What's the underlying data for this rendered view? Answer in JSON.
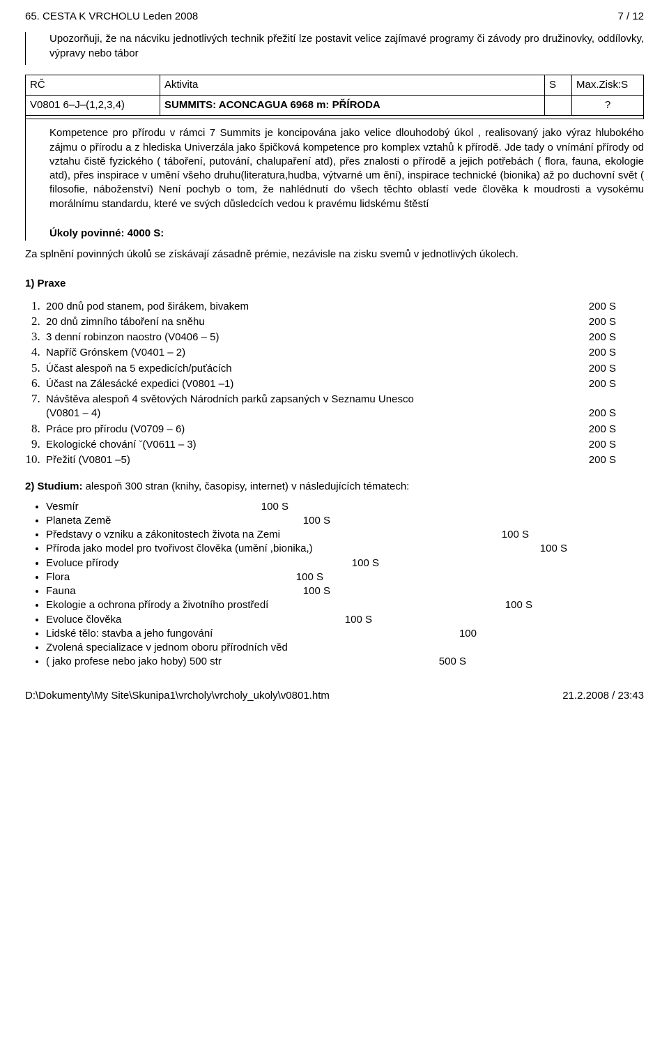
{
  "header": {
    "left": "65. CESTA K VRCHOLU Leden 2008",
    "right": "7 / 12"
  },
  "note": "Upozorňuji, že na nácviku jednotlivých technik přežití lze postavit velice zajímavé programy či závody pro družinovky, oddílovky, výpravy nebo tábor",
  "rc_table": {
    "head": {
      "rc": "RČ",
      "act": "Aktivita",
      "s": "S",
      "zisk": "Max.Zisk:S"
    },
    "row": {
      "rc": "V0801 6–J–(1,2,3,4)",
      "act": "SUMMITS: ACONCAGUA 6968 m: PŘÍRODA",
      "s": "",
      "zisk": "?"
    }
  },
  "kompetence": "Kompetence pro přírodu v rámci 7 Summits je koncipována jako velice dlouhodobý úkol , realisovaný jako výraz hlubokého zájmu o přírodu a z hlediska Univerzála jako špičková kompetence pro komplex vztahů k přírodě. Jde tady o vnímání přírody od vztahu čistě fyzického ( táboření, putování, chalupaření atd), přes znalosti o přírodě a jejich potřebách ( flora, fauna, ekologie atd), přes inspirace v umění všeho druhu(literatura,hudba, výtvarné um ění), inspirace technické (bionika) až po duchovní svět ( filosofie, náboženství) Není pochyb o tom, že nahlédnutí do všech těchto oblastí vede člověka k moudrosti a vysokému morálnímu standardu, které ve svých důsledcích vedou k pravému lidskému štěstí",
  "ukoly_heading": "Úkoly povinné: 4000 S:",
  "premie": "Za splnění povinných úkolů se získávají zásadně prémie, nezávisle na zisku svemů v jednotlivých úkolech.",
  "praxe_heading": "1) Praxe",
  "praxe": [
    {
      "text": "200 dnů pod stanem, pod širákem, bivakem",
      "pts": "200 S"
    },
    {
      "text": " 20 dnů zimního táboření na sněhu",
      "pts": "200 S"
    },
    {
      "text": "3 denní robinzon naostro (V0406 – 5)",
      "pts": "200 S"
    },
    {
      "text": "Napříč Grónskem  (V0401 – 2)",
      "pts": "200 S"
    },
    {
      "text": "Účast alespoň na 5 expedicích/puťácích",
      "pts": "200 S"
    },
    {
      "text": "Účast na Zálesácké expedici (V0801 –1)",
      "pts": "200 S"
    },
    {
      "text": "Návštěva alespoň 4 světových Národních parků zapsaných v Seznamu Unesco",
      "text2": "(V0801 – 4)",
      "pts": "200 S",
      "wrap": true
    },
    {
      "text": "Práce pro přírodu (V0709 – 6)",
      "pts": "200 S"
    },
    {
      "text": "Ekologické chování  ˇ(V0611 – 3)",
      "pts": "200 S"
    },
    {
      "text": "Přežití (V0801 –5)",
      "pts": "200 S"
    }
  ],
  "studium_heading": "2) Studium:",
  "studium_intro": " alespoň 300 stran (knihy,  časopisy, internet) v následujících tématech:",
  "studium": [
    {
      "text": "Vesmír",
      "pts": "100 S",
      "pad": 510
    },
    {
      "text": "Planeta Země",
      "pts": "100 S",
      "pad": 450
    },
    {
      "text": "Představy o vzniku a zákonitostech života na Zemi",
      "pts": "100 S",
      "pad": 165
    },
    {
      "text": "Příroda jako model pro tvořivost člověka (umění ,bionika,)",
      "pts": "100 S",
      "pad": 110
    },
    {
      "text": "Evoluce přírody",
      "pts": "100 S",
      "pad": 380
    },
    {
      "text": "Flora",
      "pts": "100 S",
      "pad": 460
    },
    {
      "text": "Fauna",
      "pts": "100 S",
      "pad": 450
    },
    {
      "text": "Ekologie a ochrona přírody a životního prostředí",
      "pts": "100 S",
      "pad": 160
    },
    {
      "text": "Evoluce člověka",
      "pts": "100 S",
      "pad": 390
    },
    {
      "text": "Lidské tělo: stavba a jeho fungování",
      "pts": "100",
      "pad": 240
    },
    {
      "text": "Zvolená specializace v jednom oboru přírodních věd",
      "pts": "",
      "pad": 0
    },
    {
      "text": "( jako profese nebo jako hoby)  500 str",
      "pts": "500 S",
      "pad": 255
    }
  ],
  "footer": {
    "left": "D:\\Dokumenty\\My Site\\Skunipa1\\vrcholy\\vrcholy_ukoly\\v0801.htm",
    "right": "21.2.2008 / 23:43"
  }
}
